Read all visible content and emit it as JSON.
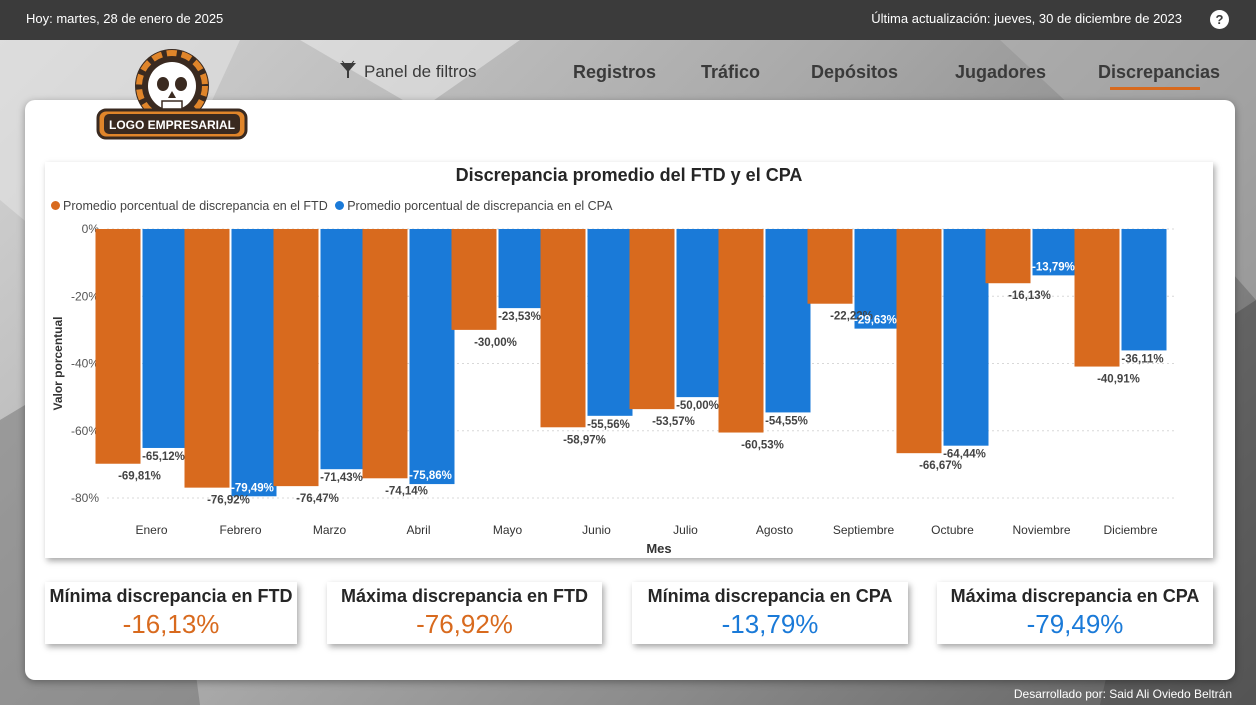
{
  "header": {
    "today_text": "Hoy: martes, 28 de enero de 2025",
    "updated_text": "Última actualización: jueves, 30 de diciembre de 2023",
    "help_label": "?"
  },
  "logo": {
    "text": "LOGO EMPRESARIAL"
  },
  "nav": {
    "filters_label": "Panel de filtros",
    "tabs": [
      {
        "label": "Registros"
      },
      {
        "label": "Tráfico"
      },
      {
        "label": "Depósitos"
      },
      {
        "label": "Jugadores"
      },
      {
        "label": "Discrepancias"
      }
    ],
    "active_tab": "Discrepancias"
  },
  "colors": {
    "ftd": "#d86a1e",
    "cpa": "#1a7ad8",
    "accent": "#d86a1e",
    "topbar": "#3b3b3b"
  },
  "chart_data": {
    "type": "bar",
    "title": "Discrepancia promedio del FTD y el CPA",
    "xlabel": "Mes",
    "ylabel": "Valor porcentual",
    "ylim": [
      -80,
      0
    ],
    "yticks": [
      "0%",
      "-20%",
      "-40%",
      "-60%",
      "-80%"
    ],
    "grid": true,
    "legend_position": "top-left",
    "categories": [
      "Enero",
      "Febrero",
      "Marzo",
      "Abril",
      "Mayo",
      "Junio",
      "Julio",
      "Agosto",
      "Septiembre",
      "Octubre",
      "Noviembre",
      "Diciembre"
    ],
    "series": [
      {
        "name": "Promedio porcentual de discrepancia en el FTD",
        "color": "#d86a1e",
        "values": [
          -69.81,
          -76.92,
          -76.47,
          -74.14,
          -30.0,
          -58.97,
          -53.57,
          -60.53,
          -22.22,
          -66.67,
          -16.13,
          -40.91
        ],
        "labels": [
          "-69,81%",
          "-76,92%",
          "-76,47%",
          "-74,14%",
          "-30,00%",
          "-58,97%",
          "-53,57%",
          "-60,53%",
          "-22,22%",
          "-66,67%",
          "-16,13%",
          "-40,91%"
        ]
      },
      {
        "name": "Promedio porcentual de discrepancia en el CPA",
        "color": "#1a7ad8",
        "values": [
          -65.12,
          -79.49,
          -71.43,
          -75.86,
          -23.53,
          -55.56,
          -50.0,
          -54.55,
          -29.63,
          -64.44,
          -13.79,
          -36.11
        ],
        "labels": [
          "-65,12%",
          "-79,49%",
          "-71,43%",
          "-75,86%",
          "-23,53%",
          "-55,56%",
          "-50,00%",
          "-54,55%",
          "-29,63%",
          "-64,44%",
          "-13,79%",
          "-36,11%"
        ]
      }
    ]
  },
  "kpis": [
    {
      "title": "Mínima discrepancia en FTD",
      "value": "-16,13%",
      "color": "#d86a1e"
    },
    {
      "title": "Máxima discrepancia en FTD",
      "value": "-76,92%",
      "color": "#d86a1e"
    },
    {
      "title": "Mínima discrepancia en CPA",
      "value": "-13,79%",
      "color": "#1a7ad8"
    },
    {
      "title": "Máxima discrepancia en CPA",
      "value": "-79,49%",
      "color": "#1a7ad8"
    }
  ],
  "footer": {
    "text": "Desarrollado por: Said Ali Oviedo Beltrán"
  }
}
